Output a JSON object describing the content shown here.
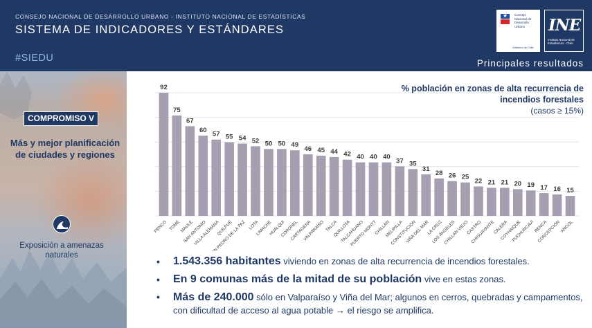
{
  "header": {
    "org": "CONSEJO NACIONAL DE DESARROLLO URBANO - INSTITUTO NACIONAL DE ESTADÍSTICAS",
    "system": "SISTEMA DE INDICADORES Y ESTÁNDARES",
    "tag": "#SIEDU",
    "section": "Principales resultados",
    "logo_gob_lines": [
      "Consejo",
      "Nacional de",
      "Desarrollo",
      "Urbano"
    ],
    "logo_gob_foot": "Gobierno de Chile",
    "logo_ine_mark": "INE",
    "logo_ine_lines": [
      "Instituto Nacional de",
      "Estadísticas - Chile"
    ]
  },
  "sidebar": {
    "commitment": "COMPROMISO V",
    "goal": "Más y mejor planificación de ciudades y regiones",
    "hazard_icon": "wave-icon",
    "exposure": "Exposición a amenazas naturales"
  },
  "chart_data": {
    "type": "bar",
    "title": "% población en zonas de alta recurrencia de incendios forestales",
    "subtitle": "(casos ≥ 15%)",
    "categories": [
      "PENCO",
      "TOMÉ",
      "MAULE",
      "SAN ANTONIO",
      "VILLA ALEMANA",
      "QUILPUÉ",
      "SAN PEDRO DE LA PAZ",
      "LOTA",
      "LIMACHE",
      "HUALQUI",
      "CORONEL",
      "CARTAGENA",
      "VALPARAÍSO",
      "TALCA",
      "QUILLOTA",
      "TALCAHUANO",
      "PUERTO MONTT",
      "CHILLÁN",
      "MELIPILLA",
      "CONSTITUCIÓN",
      "VIÑA DEL MAR",
      "LA CRUZ",
      "LOS ÁNGELES",
      "CHILLÁN VIEJO",
      "CASTRO",
      "CHIGUAYANTE",
      "CALERA",
      "COYHAIQUE",
      "PUCHUNCAVÍ",
      "RENCA",
      "CONCEPCIÓN",
      "ANGOL"
    ],
    "values": [
      92,
      75,
      67,
      60,
      57,
      55,
      54,
      52,
      50,
      50,
      49,
      46,
      45,
      44,
      42,
      40,
      40,
      40,
      37,
      35,
      31,
      28,
      26,
      25,
      22,
      21,
      21,
      20,
      19,
      17,
      16,
      15
    ],
    "ylim": [
      0,
      92
    ],
    "grid": true,
    "bar_color": "#a59fb1"
  },
  "bullets": [
    {
      "strong": "1.543.356 habitantes",
      "text": " viviendo en zonas de alta recurrencia de incendios forestales."
    },
    {
      "strong": "En 9 comunas más de la mitad de su población",
      "text": " vive en estas zonas."
    },
    {
      "strong": "Más de 240.000",
      "text": " sólo en Valparaíso y Viña del Mar; algunos en cerros, quebradas y campamentos, con dificultad de acceso al agua potable → el riesgo se amplifica."
    }
  ],
  "colors": {
    "navy": "#1f3864",
    "tag": "#8fb3e6"
  }
}
